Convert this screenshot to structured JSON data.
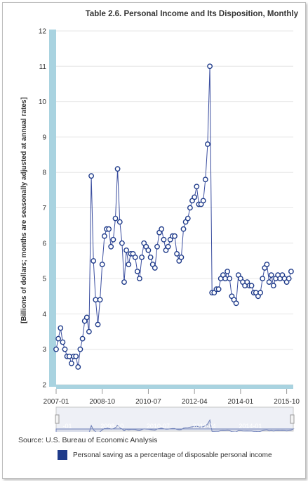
{
  "title": "Table 2.6. Personal Income and Its Disposition, Monthly",
  "source": "Source: U.S. Bureau of Economic Analysis",
  "colors": {
    "line": "#3a4d9f",
    "marker": "#1f3b8a",
    "band": "#a9d3e0",
    "grid": "#e6e6e6",
    "navigator": "#d7dbe8"
  },
  "chart_data": {
    "type": "line",
    "ylabel": "[Billions of dollars; months are seasonally adjusted at annual rates]",
    "ylim": [
      2,
      12
    ],
    "yticks": [
      2,
      3,
      4,
      5,
      6,
      7,
      8,
      9,
      10,
      11,
      12
    ],
    "xlim": [
      "2007-01",
      "2016-01"
    ],
    "xticks": [
      "2007-01",
      "2008-10",
      "2010-07",
      "2012-04",
      "2014-01",
      "2015-10"
    ],
    "navigator_ticks": [
      "-01",
      "2008-10",
      "2010-07",
      "2012-04",
      "2014-01"
    ],
    "series": [
      {
        "name": "Personal saving as a percentage of disposable personal income",
        "x": [
          "2007-01",
          "2007-02",
          "2007-03",
          "2007-04",
          "2007-05",
          "2007-06",
          "2007-07",
          "2007-08",
          "2007-09",
          "2007-10",
          "2007-11",
          "2007-12",
          "2008-01",
          "2008-02",
          "2008-03",
          "2008-04",
          "2008-05",
          "2008-06",
          "2008-07",
          "2008-08",
          "2008-09",
          "2008-10",
          "2008-11",
          "2008-12",
          "2009-01",
          "2009-02",
          "2009-03",
          "2009-04",
          "2009-05",
          "2009-06",
          "2009-07",
          "2009-08",
          "2009-09",
          "2009-10",
          "2009-11",
          "2009-12",
          "2010-01",
          "2010-02",
          "2010-03",
          "2010-04",
          "2010-05",
          "2010-06",
          "2010-07",
          "2010-08",
          "2010-09",
          "2010-10",
          "2010-11",
          "2010-12",
          "2011-01",
          "2011-02",
          "2011-03",
          "2011-04",
          "2011-05",
          "2011-06",
          "2011-07",
          "2011-08",
          "2011-09",
          "2011-10",
          "2011-11",
          "2011-12",
          "2012-01",
          "2012-02",
          "2012-03",
          "2012-04",
          "2012-05",
          "2012-06",
          "2012-07",
          "2012-08",
          "2012-09",
          "2012-10",
          "2012-11",
          "2012-12",
          "2013-01",
          "2013-02",
          "2013-03",
          "2013-04",
          "2013-05",
          "2013-06",
          "2013-07",
          "2013-08",
          "2013-09",
          "2013-10",
          "2013-11",
          "2013-12",
          "2014-01",
          "2014-02",
          "2014-03",
          "2014-04",
          "2014-05",
          "2014-06",
          "2014-07",
          "2014-08",
          "2014-09",
          "2014-10",
          "2014-11",
          "2014-12",
          "2015-01",
          "2015-02",
          "2015-03",
          "2015-04",
          "2015-05",
          "2015-06",
          "2015-07",
          "2015-08",
          "2015-09",
          "2015-10",
          "2015-11",
          "2015-12"
        ],
        "values": [
          3.0,
          3.3,
          3.6,
          3.2,
          3.0,
          2.8,
          2.8,
          2.6,
          2.8,
          2.8,
          2.5,
          3.0,
          3.3,
          3.8,
          3.9,
          3.5,
          7.9,
          5.5,
          4.4,
          3.7,
          4.4,
          5.4,
          6.2,
          6.4,
          6.4,
          5.9,
          6.1,
          6.7,
          8.1,
          6.6,
          6.0,
          4.9,
          5.8,
          5.4,
          5.7,
          5.7,
          5.6,
          5.2,
          5.0,
          5.6,
          6.0,
          5.9,
          5.8,
          5.6,
          5.4,
          5.3,
          5.9,
          6.3,
          6.4,
          6.1,
          5.8,
          5.9,
          6.1,
          6.2,
          6.2,
          5.7,
          5.5,
          5.6,
          6.4,
          6.6,
          6.7,
          7.0,
          7.2,
          7.3,
          7.6,
          7.1,
          7.1,
          7.2,
          7.8,
          8.8,
          11.0,
          4.6,
          4.6,
          4.7,
          4.7,
          5.0,
          5.1,
          5.0,
          5.2,
          5.0,
          4.5,
          4.4,
          4.3,
          5.1,
          5.0,
          4.9,
          4.8,
          4.9,
          4.8,
          4.8,
          4.6,
          4.6,
          4.5,
          4.6,
          5.0,
          5.3,
          5.4,
          4.9,
          5.1,
          4.8,
          5.0,
          5.1,
          5.0,
          5.1,
          5.0,
          4.9,
          5.0,
          5.2
        ]
      }
    ]
  }
}
